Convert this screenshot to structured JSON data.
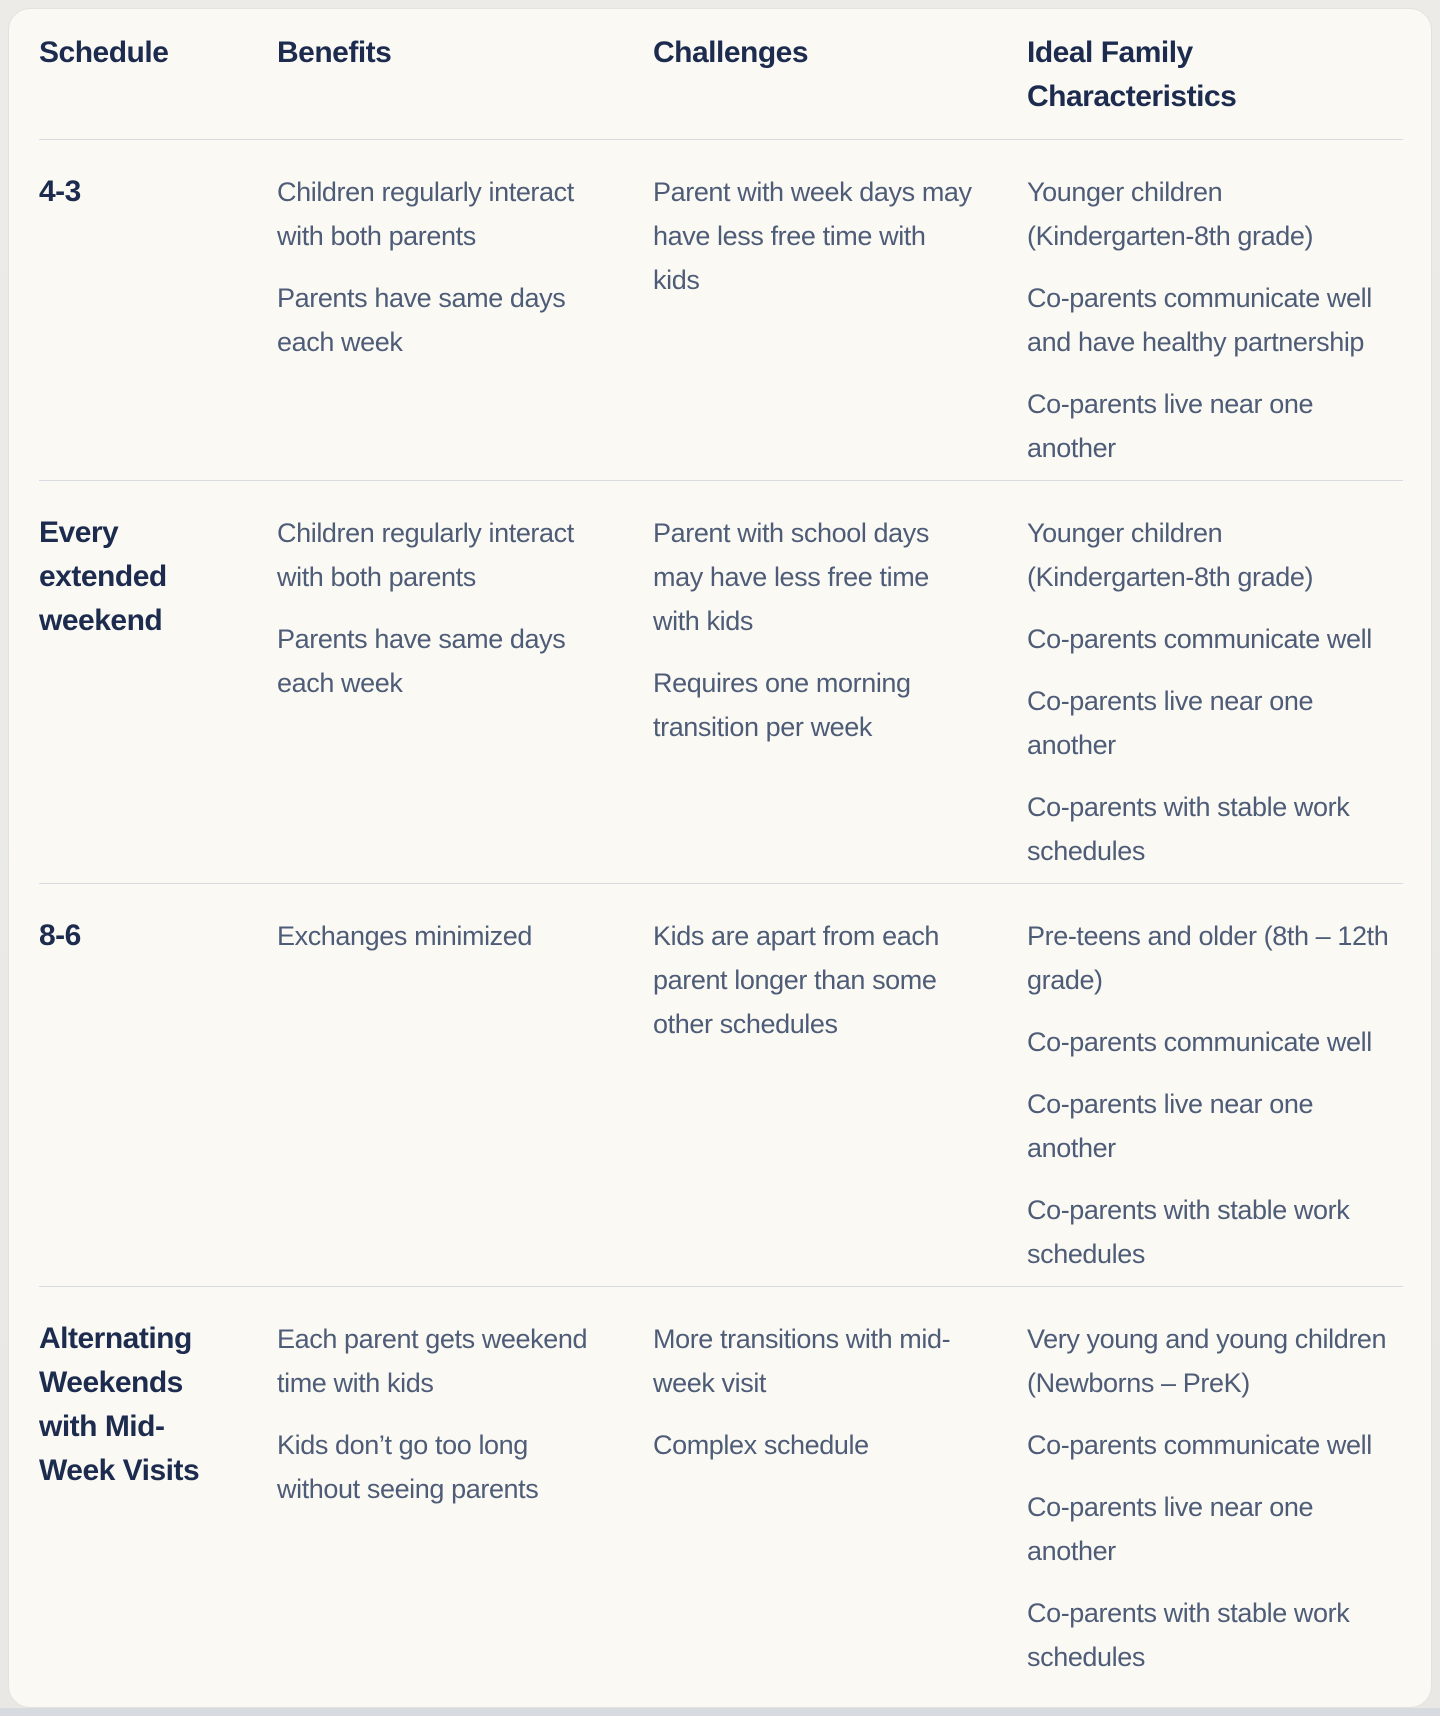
{
  "colors": {
    "page_background": "#E9E8E4",
    "card_background": "#FAF9F4",
    "card_border": "#E3E2DE",
    "heading_text": "#1C2B4E",
    "body_text": "#4E5C77",
    "divider": "#D8DCE2"
  },
  "table": {
    "columns": [
      {
        "label": "Schedule"
      },
      {
        "label": "Benefits"
      },
      {
        "label": "Challenges"
      },
      {
        "label": "Ideal Family Characteristics"
      }
    ],
    "rows": [
      {
        "schedule": "4-3",
        "benefits": [
          "Children regularly interact\nwith both parents",
          "Parents have same days\neach week"
        ],
        "challenges": [
          "Parent with week days may\nhave less free time with\nkids"
        ],
        "ideal": [
          "Younger children\n(Kindergarten-8th grade)",
          "Co-parents communicate well\nand have healthy partnership",
          "Co-parents live near one\nanother"
        ]
      },
      {
        "schedule": "Every\nextended\nweekend",
        "benefits": [
          "Children regularly interact\nwith both parents",
          "Parents have same days\neach week"
        ],
        "challenges": [
          "Parent with school days\nmay have less free time\nwith kids",
          "Requires one morning\ntransition per week"
        ],
        "ideal": [
          "Younger children\n(Kindergarten-8th grade)",
          "Co-parents communicate well",
          "Co-parents live near one\nanother",
          "Co-parents with stable work\nschedules"
        ]
      },
      {
        "schedule": "8-6",
        "benefits": [
          "Exchanges minimized"
        ],
        "challenges": [
          "Kids are apart from each\nparent longer than some\nother schedules"
        ],
        "ideal": [
          "Pre-teens and older (8th – 12th\ngrade)",
          "Co-parents communicate well",
          "Co-parents live near one\nanother",
          "Co-parents with stable work\nschedules"
        ]
      },
      {
        "schedule": "Alternating\nWeekends\nwith Mid-\nWeek Visits",
        "benefits": [
          "Each parent gets weekend\ntime with kids",
          "Kids don’t go too long\nwithout seeing parents"
        ],
        "challenges": [
          "More transitions with mid-\nweek visit",
          "Complex schedule"
        ],
        "ideal": [
          "Very young and young children\n(Newborns – PreK)",
          "Co-parents communicate well",
          "Co-parents live near one\nanother",
          "Co-parents with stable work\nschedules"
        ]
      }
    ]
  }
}
